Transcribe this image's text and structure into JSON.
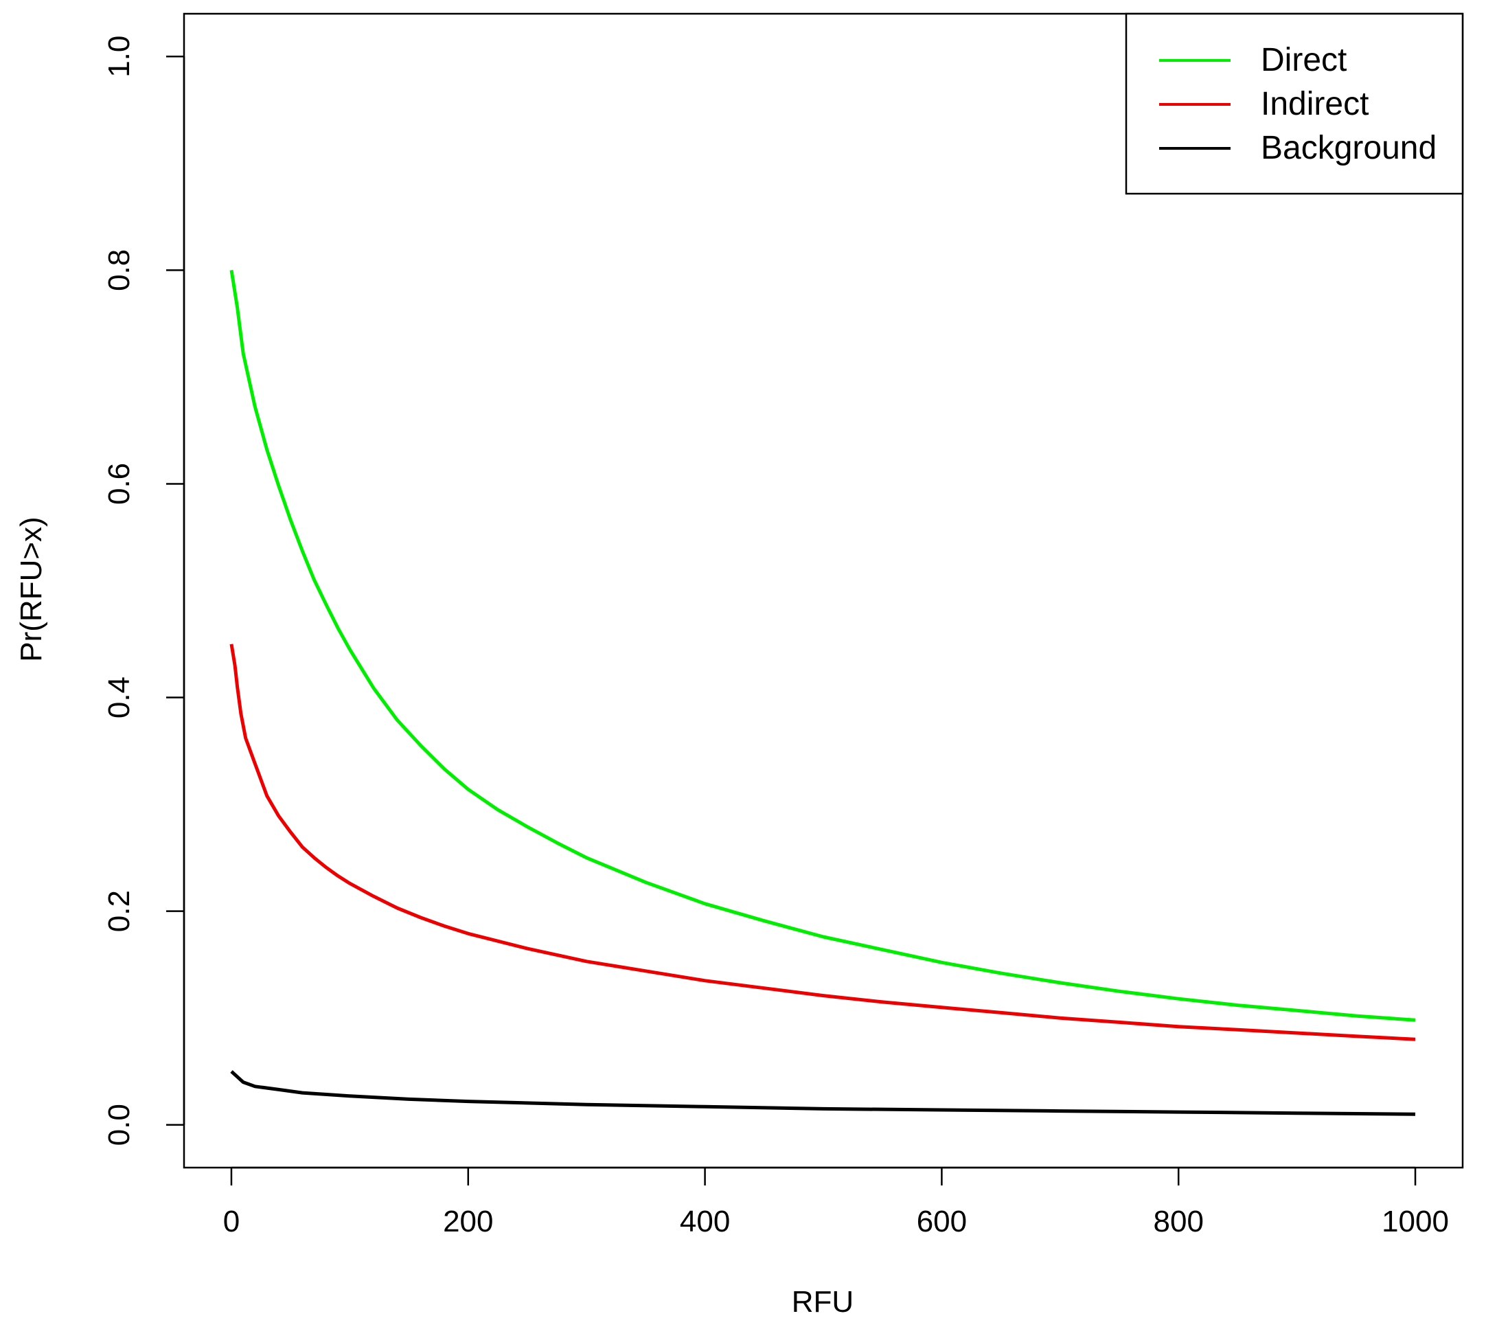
{
  "chart_data": {
    "type": "line",
    "xlabel": "RFU",
    "ylabel": "Pr(RFU>x)",
    "xlim": [
      -40,
      1040
    ],
    "ylim": [
      -0.04,
      1.04
    ],
    "x_ticks": [
      0,
      200,
      400,
      600,
      800,
      1000
    ],
    "x_tick_labels": [
      "0",
      "200",
      "400",
      "600",
      "800",
      "1000"
    ],
    "y_ticks": [
      0.0,
      0.2,
      0.4,
      0.6,
      0.8,
      1.0
    ],
    "y_tick_labels": [
      "0.0",
      "0.2",
      "0.4",
      "0.6",
      "0.8",
      "1.0"
    ],
    "grid": false,
    "legend_position": "top-right",
    "series": [
      {
        "name": "Direct",
        "color": "#00ee00",
        "points": [
          [
            0,
            0.8
          ],
          [
            5,
            0.765
          ],
          [
            10,
            0.722
          ],
          [
            20,
            0.672
          ],
          [
            30,
            0.632
          ],
          [
            40,
            0.598
          ],
          [
            50,
            0.566
          ],
          [
            60,
            0.537
          ],
          [
            70,
            0.51
          ],
          [
            80,
            0.487
          ],
          [
            90,
            0.465
          ],
          [
            100,
            0.445
          ],
          [
            120,
            0.409
          ],
          [
            140,
            0.379
          ],
          [
            160,
            0.355
          ],
          [
            180,
            0.333
          ],
          [
            200,
            0.314
          ],
          [
            225,
            0.295
          ],
          [
            250,
            0.279
          ],
          [
            275,
            0.264
          ],
          [
            300,
            0.25
          ],
          [
            350,
            0.227
          ],
          [
            400,
            0.207
          ],
          [
            450,
            0.191
          ],
          [
            500,
            0.176
          ],
          [
            550,
            0.164
          ],
          [
            600,
            0.152
          ],
          [
            650,
            0.142
          ],
          [
            700,
            0.133
          ],
          [
            750,
            0.125
          ],
          [
            800,
            0.118
          ],
          [
            850,
            0.112
          ],
          [
            900,
            0.107
          ],
          [
            950,
            0.102
          ],
          [
            1000,
            0.098
          ]
        ]
      },
      {
        "name": "Indirect",
        "color": "#ee0000",
        "points": [
          [
            0,
            0.45
          ],
          [
            3,
            0.43
          ],
          [
            5,
            0.41
          ],
          [
            8,
            0.385
          ],
          [
            12,
            0.362
          ],
          [
            20,
            0.338
          ],
          [
            30,
            0.308
          ],
          [
            40,
            0.289
          ],
          [
            50,
            0.274
          ],
          [
            60,
            0.26
          ],
          [
            70,
            0.25
          ],
          [
            80,
            0.241
          ],
          [
            90,
            0.233
          ],
          [
            100,
            0.226
          ],
          [
            120,
            0.214
          ],
          [
            140,
            0.203
          ],
          [
            160,
            0.194
          ],
          [
            180,
            0.186
          ],
          [
            200,
            0.179
          ],
          [
            250,
            0.165
          ],
          [
            300,
            0.153
          ],
          [
            350,
            0.144
          ],
          [
            400,
            0.135
          ],
          [
            450,
            0.128
          ],
          [
            500,
            0.121
          ],
          [
            550,
            0.115
          ],
          [
            600,
            0.11
          ],
          [
            650,
            0.105
          ],
          [
            700,
            0.1
          ],
          [
            750,
            0.096
          ],
          [
            800,
            0.092
          ],
          [
            850,
            0.089
          ],
          [
            900,
            0.086
          ],
          [
            950,
            0.083
          ],
          [
            1000,
            0.08
          ]
        ]
      },
      {
        "name": "Background",
        "color": "#000000",
        "points": [
          [
            0,
            0.05
          ],
          [
            5,
            0.045
          ],
          [
            10,
            0.04
          ],
          [
            20,
            0.036
          ],
          [
            40,
            0.033
          ],
          [
            60,
            0.03
          ],
          [
            100,
            0.027
          ],
          [
            150,
            0.024
          ],
          [
            200,
            0.022
          ],
          [
            300,
            0.019
          ],
          [
            400,
            0.017
          ],
          [
            500,
            0.015
          ],
          [
            600,
            0.014
          ],
          [
            700,
            0.013
          ],
          [
            800,
            0.012
          ],
          [
            900,
            0.011
          ],
          [
            1000,
            0.01
          ]
        ]
      }
    ]
  }
}
